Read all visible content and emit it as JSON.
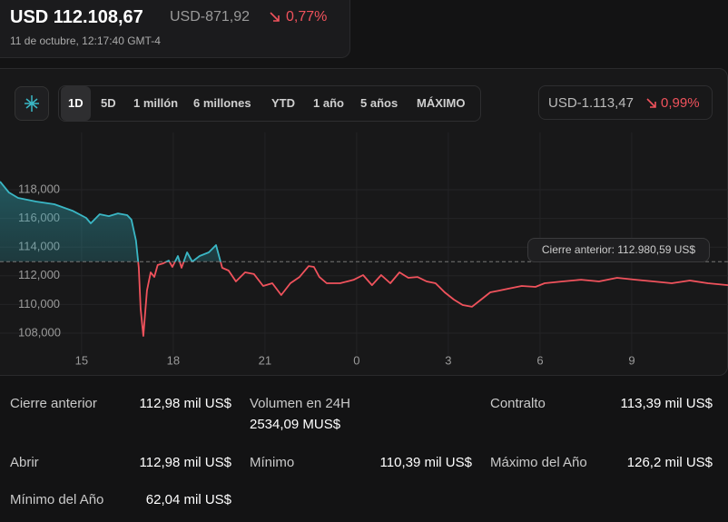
{
  "header": {
    "price": "USD 112.108,67",
    "change": "USD-871,92",
    "change_pct": "0,77%",
    "timestamp": "11 de octubre, 12:17:40 GMT-4"
  },
  "tabs": {
    "items": [
      "1D",
      "5D",
      "1 millón",
      "6 millones",
      "YTD",
      "1 año",
      "5 años",
      "MÁXIMO"
    ],
    "selected": 0
  },
  "range_change": {
    "change": "USD-1.113,47",
    "change_pct": "0,99%"
  },
  "chart_data": {
    "type": "line",
    "color_up": "#3ab7c5",
    "color_down": "#f0525c",
    "x": [
      0.33,
      0.62,
      0.92,
      1.51,
      2.11,
      2.7,
      3.15,
      3.3,
      3.59,
      3.89,
      4.19,
      4.49,
      4.63,
      4.78,
      4.87,
      4.93,
      5.02,
      5.14,
      5.26,
      5.38,
      5.49,
      5.67,
      5.85,
      5.97,
      6.15,
      6.27,
      6.45,
      6.62,
      6.86,
      7.16,
      7.4,
      7.6,
      7.81,
      8.05,
      8.35,
      8.64,
      8.94,
      9.24,
      9.53,
      9.83,
      10.13,
      10.43,
      10.6,
      10.78,
      11.02,
      11.46,
      11.91,
      12.21,
      12.5,
      12.8,
      13.1,
      13.4,
      13.69,
      13.99,
      14.29,
      14.58,
      14.88,
      15.18,
      15.47,
      15.77,
      16.07,
      16.37,
      16.66,
      16.96,
      17.4,
      17.85,
      18.15,
      18.74,
      19.34,
      19.93,
      20.52,
      21.12,
      21.71,
      22.31,
      22.9,
      23.49,
      24.15
    ],
    "values": [
      118570,
      117810,
      117430,
      117180,
      116990,
      116540,
      116040,
      115660,
      116290,
      116160,
      116350,
      116230,
      115910,
      114460,
      112560,
      109710,
      107810,
      110970,
      112240,
      111920,
      112750,
      112870,
      113060,
      112620,
      113380,
      112560,
      113630,
      112990,
      113380,
      113630,
      114140,
      112560,
      112370,
      111610,
      112240,
      112120,
      111290,
      111480,
      110660,
      111480,
      111920,
      112680,
      112620,
      111920,
      111480,
      111480,
      111730,
      112050,
      111350,
      112050,
      111480,
      112240,
      111860,
      111920,
      111610,
      111480,
      110850,
      110340,
      109960,
      109840,
      110340,
      110850,
      110970,
      111100,
      111290,
      111230,
      111480,
      111610,
      111730,
      111610,
      111860,
      111730,
      111610,
      111480,
      111670,
      111480,
      111350
    ],
    "xlim": [
      0.33,
      24.15
    ],
    "xticks": [
      {
        "value": 3,
        "label": "15"
      },
      {
        "value": 6,
        "label": "18"
      },
      {
        "value": 9,
        "label": "21"
      },
      {
        "value": 12,
        "label": "0"
      },
      {
        "value": 15,
        "label": "3"
      },
      {
        "value": 18,
        "label": "6"
      },
      {
        "value": 21,
        "label": "9"
      }
    ],
    "ylim": [
      106500,
      122000
    ],
    "yticks": [
      {
        "value": 108000,
        "label": "108,000"
      },
      {
        "value": 110000,
        "label": "110,000"
      },
      {
        "value": 112000,
        "label": "112,000"
      },
      {
        "value": 114000,
        "label": "114,000"
      },
      {
        "value": 116000,
        "label": "116,000"
      },
      {
        "value": 118000,
        "label": "118,000"
      }
    ],
    "reference": {
      "value": 112980.59,
      "label": "Cierre anterior: 112.980,59 US$"
    }
  },
  "stats": [
    {
      "label": "Cierre anterior",
      "value": "112,98 mil US$"
    },
    {
      "label": "Volumen en 24H",
      "value": "2534,09 MUS$"
    },
    {
      "label": "Contralto",
      "value": "113,39 mil US$"
    },
    {
      "label": "Abrir",
      "value": "112,98 mil US$"
    },
    {
      "label": "Mínimo",
      "value": "110,39 mil US$"
    },
    {
      "label": "Máximo del Año",
      "value": "126,2 mil US$"
    },
    {
      "label": "Mínimo del Año",
      "value": "62,04 mil US$"
    }
  ]
}
